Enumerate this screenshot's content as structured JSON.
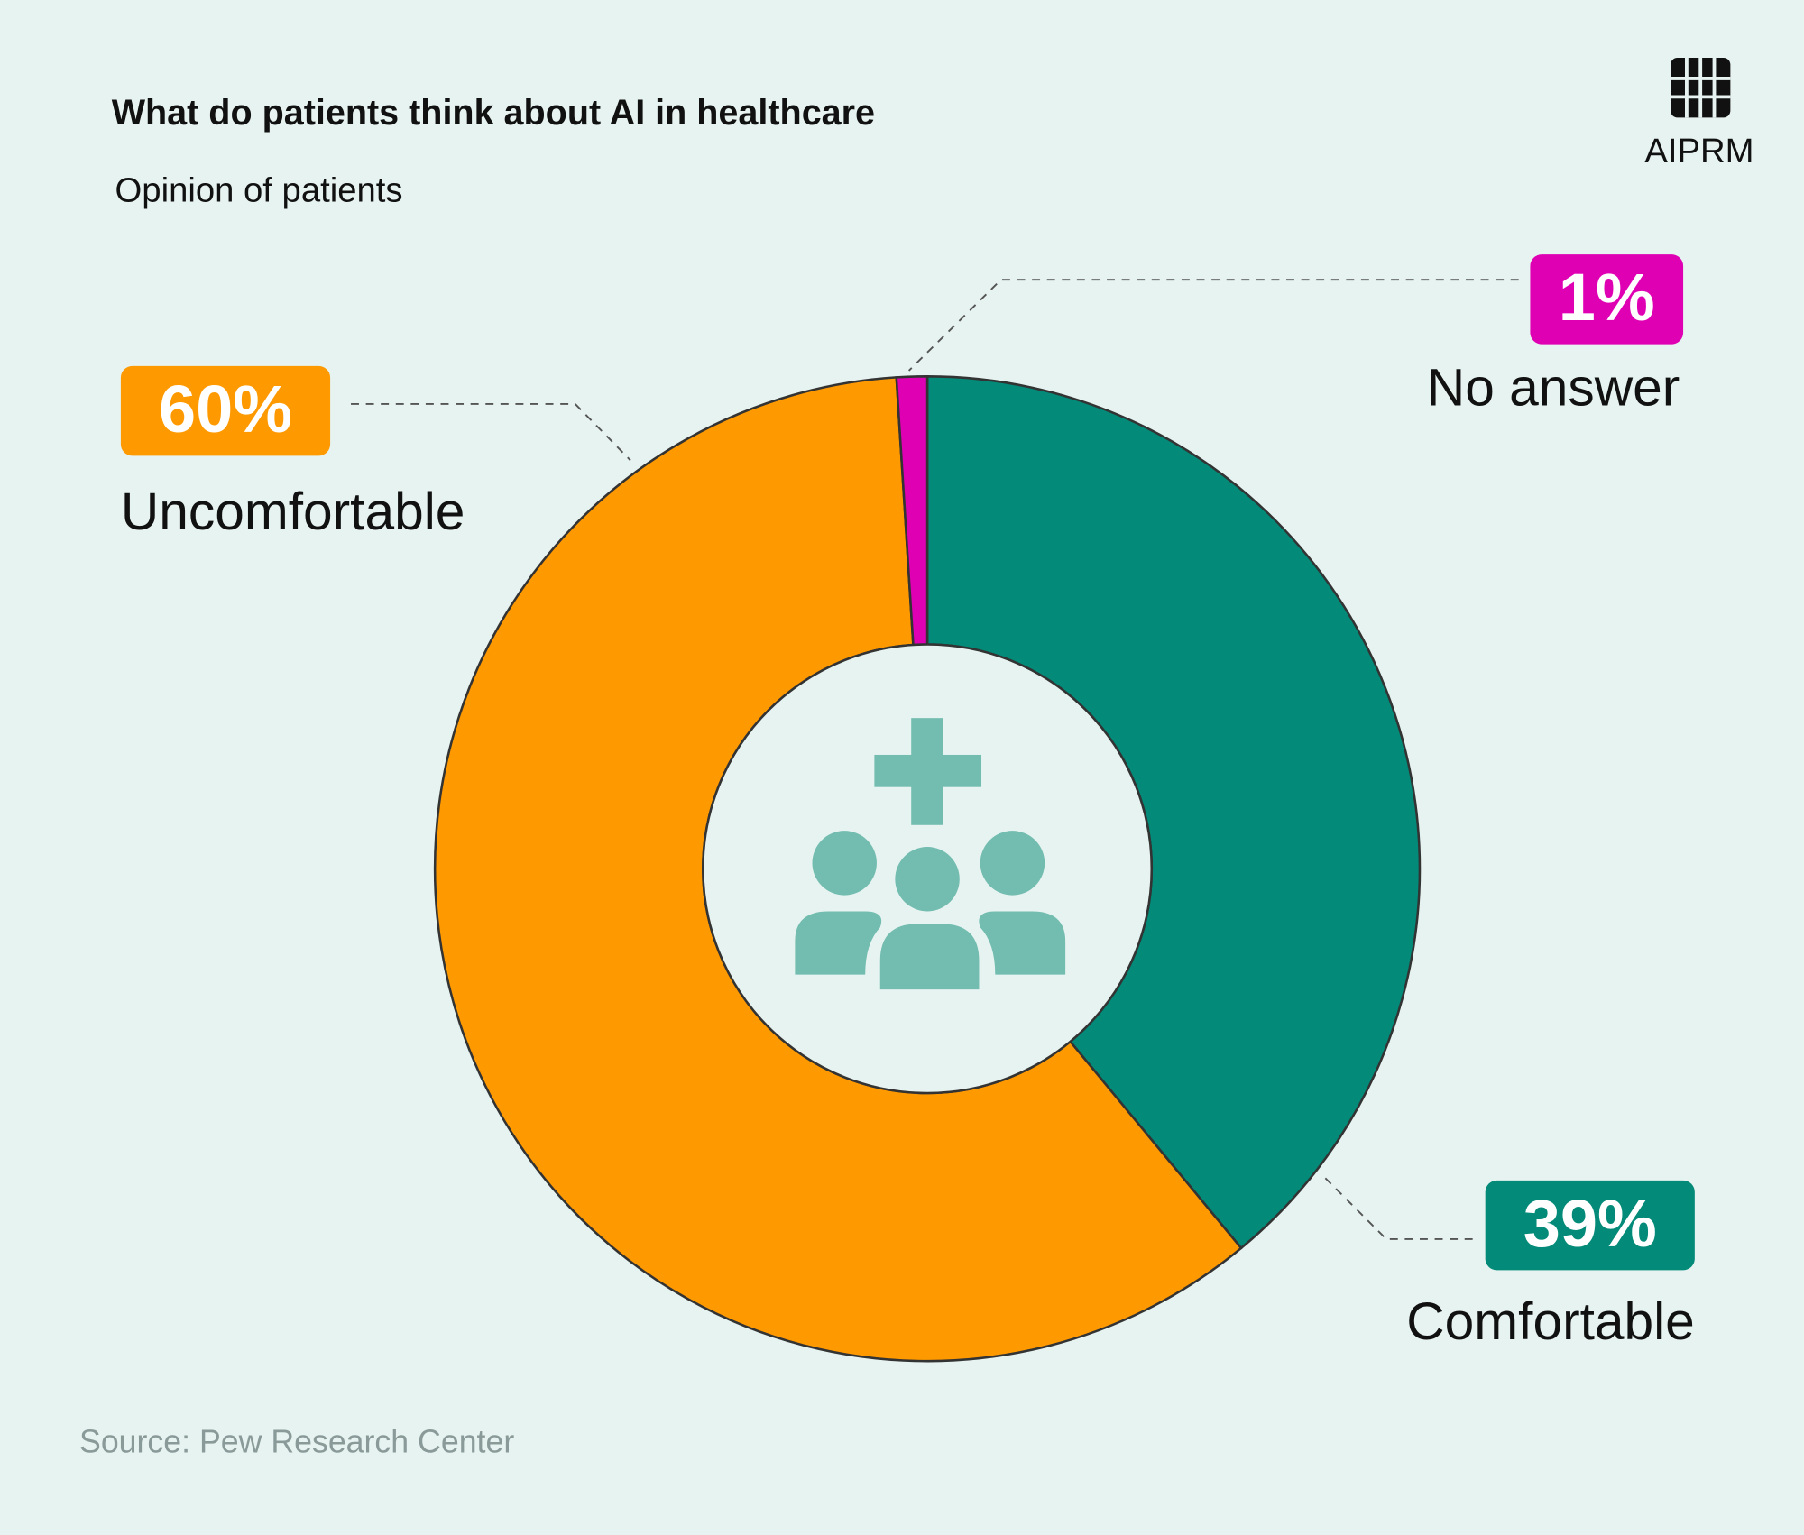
{
  "chart_data": {
    "type": "pie",
    "donut": true,
    "title": "What do patients think about AI in healthcare",
    "subtitle": "Opinion of patients",
    "categories": [
      "Comfortable",
      "Uncomfortable",
      "No answer"
    ],
    "values": [
      39,
      60,
      1
    ],
    "value_labels": [
      "39%",
      "60%",
      "1%"
    ],
    "colors": [
      "#038a78",
      "#ff9900",
      "#e000b4"
    ],
    "source": "Source: Pew Research Center"
  },
  "logo": "AIPRM"
}
